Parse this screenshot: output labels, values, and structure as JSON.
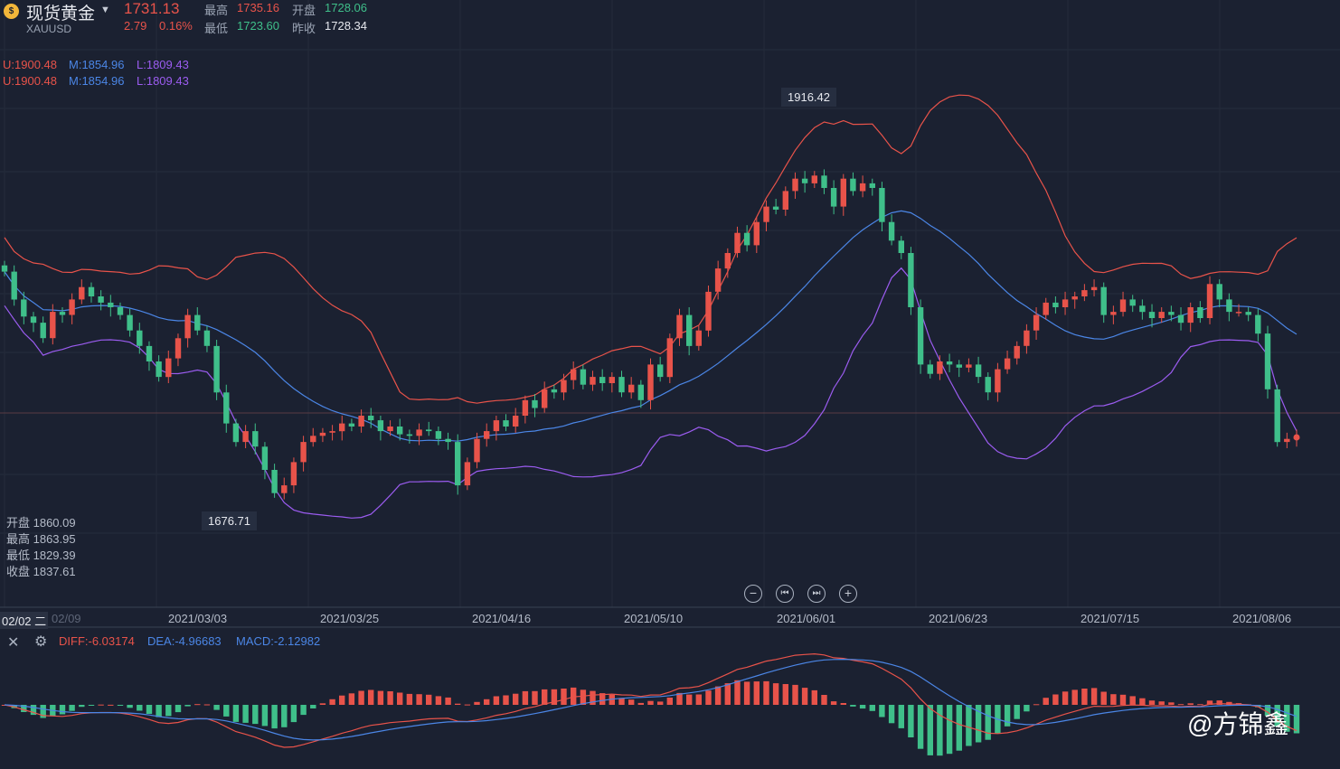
{
  "header": {
    "title": "现货黄金",
    "symbol": "XAUUSD",
    "price": "1731.13",
    "change": "2.79",
    "change_pct": "0.16%",
    "high_label": "最高",
    "high_value": "1735.16",
    "open_label": "开盘",
    "open_value": "1728.06",
    "low_label": "最低",
    "low_value": "1723.60",
    "prev_close_label": "昨收",
    "prev_close_value": "1728.34"
  },
  "boll": {
    "line1": {
      "u": "U:1900.48",
      "m": "M:1854.96",
      "l": "L:1809.43"
    },
    "line2": {
      "u": "U:1900.48",
      "m": "M:1854.96",
      "l": "L:1809.43"
    },
    "colors": {
      "upper": "#e8534a",
      "mid": "#4b86e6",
      "lower": "#9b5cf0"
    }
  },
  "ohlc_panel": {
    "open": "开盘 1860.09",
    "high": "最高 1863.95",
    "low": "最低 1829.39",
    "close": "收盘 1837.61"
  },
  "annotations": {
    "max_tag": "1916.42",
    "min_tag": "1676.71"
  },
  "xaxis": {
    "first": "02/02 二",
    "first_faded": "02/09",
    "ticks": [
      "2021/03/03",
      "2021/03/25",
      "2021/04/16",
      "2021/05/10",
      "2021/06/01",
      "2021/06/23",
      "2021/07/15",
      "2021/08/06"
    ]
  },
  "controls": {
    "zoom_out": "−",
    "prev": "⏮",
    "next": "⏭",
    "zoom_in": "+"
  },
  "macd": {
    "diff": "DIFF:-6.03174",
    "dea": "DEA:-4.96683",
    "macd": "MACD:-2.12982"
  },
  "watermark": "@方锦鑫",
  "colors": {
    "up": "#e8534a",
    "down": "#3fbf8a",
    "background": "#1b2131"
  },
  "chart_data": {
    "type": "candlestick",
    "close": [
      1838,
      1820,
      1809,
      1805,
      1795,
      1812,
      1810,
      1820,
      1828,
      1822,
      1818,
      1815,
      1810,
      1800,
      1790,
      1780,
      1770,
      1782,
      1795,
      1810,
      1800,
      1790,
      1760,
      1740,
      1728,
      1735,
      1725,
      1710,
      1695,
      1700,
      1715,
      1728,
      1732,
      1734,
      1735,
      1740,
      1738,
      1745,
      1742,
      1735,
      1738,
      1733,
      1732,
      1736,
      1735,
      1730,
      1728,
      1700,
      1715,
      1730,
      1735,
      1742,
      1738,
      1745,
      1755,
      1750,
      1762,
      1760,
      1768,
      1775,
      1765,
      1770,
      1766,
      1770,
      1760,
      1765,
      1755,
      1778,
      1770,
      1795,
      1810,
      1790,
      1800,
      1825,
      1840,
      1850,
      1863,
      1855,
      1870,
      1880,
      1878,
      1890,
      1898,
      1895,
      1900,
      1892,
      1880,
      1898,
      1890,
      1895,
      1892,
      1870,
      1858,
      1850,
      1815,
      1778,
      1772,
      1780,
      1778,
      1776,
      1778,
      1770,
      1760,
      1775,
      1782,
      1790,
      1800,
      1810,
      1818,
      1815,
      1820,
      1822,
      1826,
      1828,
      1810,
      1812,
      1820,
      1816,
      1812,
      1808,
      1812,
      1810,
      1805,
      1815,
      1808,
      1830,
      1820,
      1812,
      1812,
      1810,
      1798,
      1762,
      1728,
      1730,
      1731
    ],
    "upper_band_label": "U:1900.48",
    "mid_band_label": "M:1854.96",
    "lower_band_label": "L:1809.43",
    "max": 1916.42,
    "min": 1676.71,
    "ylim": [
      1640,
      1990
    ],
    "indicators": [
      "BOLL",
      "MACD"
    ]
  }
}
